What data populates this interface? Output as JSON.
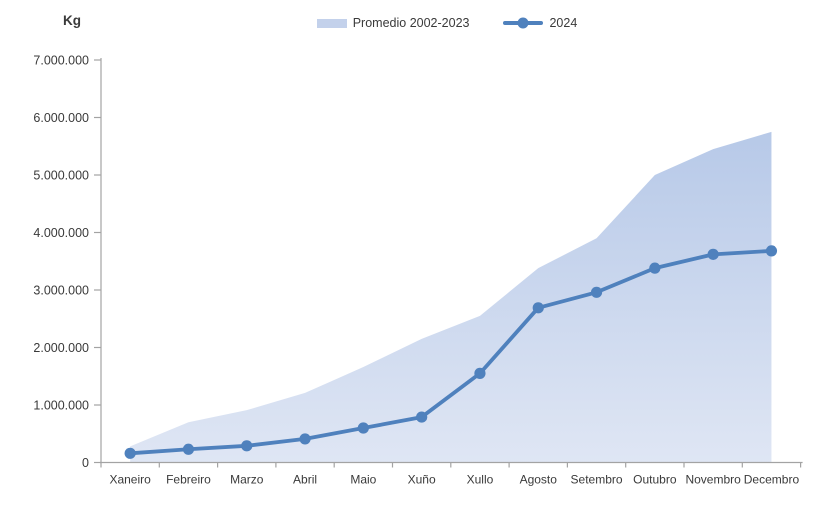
{
  "chart_data": {
    "type": "combo",
    "title": "",
    "ylabel": "Kg",
    "xlabel": "",
    "grid": false,
    "legend_position": "top-center",
    "ylim": [
      0,
      7000000
    ],
    "ytick_labels": [
      "0",
      "1.000.000",
      "2.000.000",
      "3.000.000",
      "4.000.000",
      "5.000.000",
      "6.000.000",
      "7.000.000"
    ],
    "ytick_values": [
      0,
      1000000,
      2000000,
      3000000,
      4000000,
      5000000,
      6000000,
      7000000
    ],
    "categories": [
      "Xaneiro",
      "Febreiro",
      "Marzo",
      "Abril",
      "Maio",
      "Xuño",
      "Xullo",
      "Agosto",
      "Setembro",
      "Outubro",
      "Novembro",
      "Decembro"
    ],
    "series": [
      {
        "name": "Promedio 2002-2023",
        "type": "area",
        "values": [
          280000,
          700000,
          910000,
          1210000,
          1660000,
          2150000,
          2550000,
          3380000,
          3900000,
          5000000,
          5450000,
          5750000
        ]
      },
      {
        "name": "2024",
        "type": "line",
        "values": [
          160000,
          230000,
          290000,
          410000,
          600000,
          790000,
          1550000,
          2690000,
          2960000,
          3380000,
          3620000,
          3680000
        ]
      }
    ],
    "colors": {
      "line": "#4f81bd",
      "area_top": "#b7c9e8",
      "area_bottom": "#dfe6f4",
      "legend_area_swatch": "#c3d1eb",
      "axis": "#a3a3a3",
      "text": "#3a3a3a"
    }
  }
}
